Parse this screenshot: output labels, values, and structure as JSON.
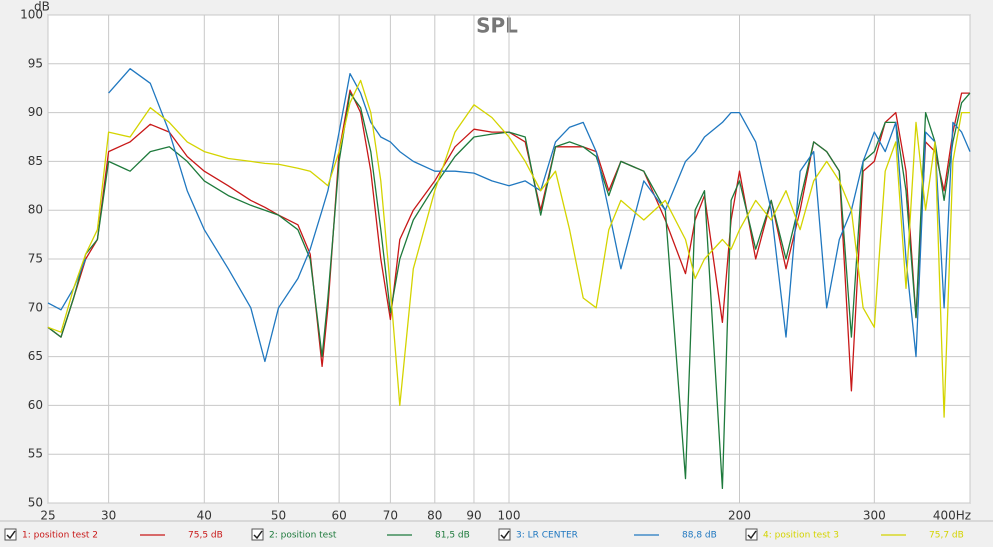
{
  "chart_data": {
    "type": "line",
    "title": "SPL",
    "y_label": "dB",
    "log_x": true,
    "grid": true,
    "xlim": [
      25,
      400
    ],
    "ylim": [
      50,
      100
    ],
    "xticks": [
      25,
      30,
      40,
      50,
      60,
      70,
      80,
      90,
      100,
      200,
      300,
      {
        "value": 400,
        "label": "400Hz"
      }
    ],
    "yticks": [
      50,
      55,
      60,
      65,
      70,
      75,
      80,
      85,
      90,
      95,
      100
    ],
    "x": [
      25,
      26,
      27,
      28,
      29,
      30,
      32,
      34,
      36,
      38,
      40,
      43,
      46,
      48,
      50,
      53,
      55,
      57,
      58,
      60,
      62,
      64,
      66,
      68,
      70,
      72,
      75,
      80,
      85,
      90,
      95,
      100,
      105,
      110,
      115,
      120,
      125,
      130,
      135,
      140,
      150,
      160,
      170,
      175,
      180,
      190,
      195,
      200,
      210,
      220,
      230,
      240,
      250,
      260,
      270,
      280,
      290,
      300,
      310,
      320,
      330,
      340,
      350,
      360,
      370,
      380,
      390,
      400
    ],
    "series": [
      {
        "name": "1: position test 2",
        "level": "75,5 dB",
        "color": "#c81818",
        "values": [
          68,
          67,
          71,
          75,
          77,
          86,
          87,
          88.8,
          88,
          85.5,
          84,
          82.5,
          81,
          80.3,
          79.5,
          78.5,
          75.5,
          64,
          70,
          86,
          92.3,
          90,
          84,
          75,
          68.8,
          77,
          80,
          83,
          86.5,
          88.3,
          88,
          88,
          87,
          80,
          86.5,
          86.5,
          86.5,
          86,
          82,
          85,
          84,
          79,
          73.5,
          79,
          81.5,
          68.5,
          79,
          84,
          75,
          81,
          74,
          80,
          87,
          86,
          84,
          61.5,
          84,
          85,
          89,
          90,
          84,
          69,
          87,
          86,
          82,
          88,
          92,
          92
        ]
      },
      {
        "name": "2: position test",
        "level": "81,5 dB",
        "color": "#1e7a3c",
        "values": [
          68,
          67,
          71,
          75.5,
          77,
          85,
          84,
          86,
          86.5,
          85,
          83,
          81.5,
          80.5,
          80,
          79.5,
          78,
          75,
          65,
          71,
          85,
          92,
          90.5,
          86,
          78,
          69.5,
          75,
          79,
          82.5,
          85.5,
          87.5,
          87.8,
          88,
          87.5,
          79.5,
          86.5,
          87,
          86.5,
          85.5,
          81.5,
          85,
          84,
          80,
          52.5,
          80,
          82,
          51.5,
          81,
          83,
          76,
          81,
          75,
          81,
          87,
          86,
          84,
          67,
          85,
          86,
          89,
          89,
          82,
          69,
          90,
          87,
          81,
          87,
          91,
          92
        ]
      },
      {
        "name": "3: LR CENTER",
        "level": "88,8 dB",
        "color": "#2078c0",
        "values": [
          70.5,
          69.8,
          72,
          75,
          null,
          92,
          94.5,
          93,
          88,
          82,
          78,
          74,
          70,
          64.5,
          70,
          73,
          76,
          80,
          82,
          88,
          94,
          92,
          89,
          87.5,
          87,
          86,
          85,
          84,
          84,
          83.8,
          83,
          82.5,
          83,
          82,
          87,
          88.5,
          89,
          86,
          80,
          74,
          83,
          80,
          85,
          86,
          87.5,
          89,
          90,
          90,
          87,
          80,
          67,
          84,
          86,
          70,
          77,
          80,
          85,
          88,
          86,
          89,
          75,
          65,
          88,
          87,
          70,
          89,
          88,
          86
        ]
      },
      {
        "name": "4: position test 3",
        "level": "75,7 dB",
        "color": "#d4d400",
        "values": [
          68,
          67.5,
          72,
          75.5,
          78,
          88,
          87.5,
          90.5,
          89,
          87,
          86,
          85.3,
          85,
          84.8,
          84.7,
          84.3,
          84,
          83,
          82.5,
          86,
          91,
          93.3,
          90,
          83,
          72,
          60,
          74,
          82,
          88,
          90.8,
          89.5,
          87.5,
          85,
          82,
          84,
          78,
          71,
          70,
          78,
          81,
          79,
          81,
          77,
          73,
          75,
          77,
          76,
          78,
          81,
          79,
          82,
          78,
          83,
          85,
          83,
          80,
          70,
          68,
          84,
          87,
          72,
          89,
          80,
          87,
          58.8,
          85,
          90,
          90
        ]
      }
    ]
  }
}
